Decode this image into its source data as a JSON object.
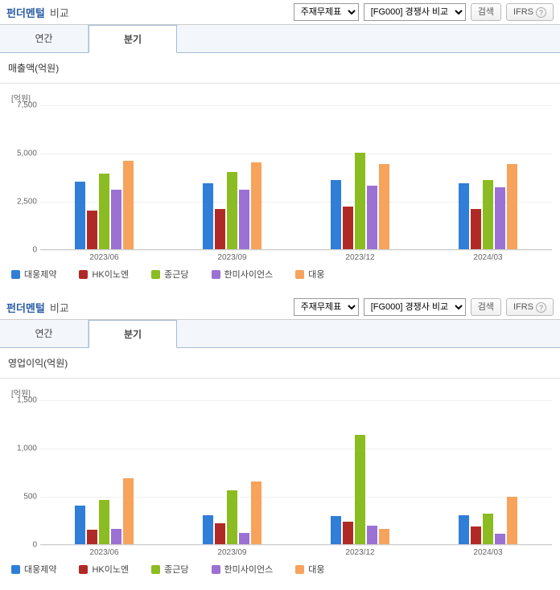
{
  "series": [
    {
      "label": "대웅제약",
      "color": "#2f7ed8"
    },
    {
      "label": "HK이노엔",
      "color": "#b02a25"
    },
    {
      "label": "종근당",
      "color": "#8bbc21"
    },
    {
      "label": "한미사이언스",
      "color": "#9b71d4"
    },
    {
      "label": "대웅",
      "color": "#f7a35c"
    }
  ],
  "panels": [
    {
      "title_main": "펀더멘털",
      "title_sub": "비교",
      "select1": "주재무제표",
      "select2": "[FG000] 경쟁사 비교",
      "btn_search": "검색",
      "btn_ifrs": "IFRS",
      "tabs": {
        "annual": "연간",
        "quarter": "분기",
        "active": "quarter"
      },
      "chart": {
        "title": "매출액(억원)",
        "yunit": "[억원]",
        "ymax": 7500,
        "yticks": [
          0,
          2500,
          5000,
          7500
        ],
        "categories": [
          "2023/06",
          "2023/09",
          "2023/12",
          "2024/03"
        ],
        "data": [
          [
            3500,
            2000,
            3900,
            3100,
            4600
          ],
          [
            3400,
            2100,
            4000,
            3100,
            4500
          ],
          [
            3600,
            2200,
            5000,
            3300,
            4400
          ],
          [
            3400,
            2100,
            3600,
            3200,
            4400
          ]
        ]
      }
    },
    {
      "title_main": "펀더멘털",
      "title_sub": "비교",
      "select1": "주재무제표",
      "select2": "[FG000] 경쟁사 비교",
      "btn_search": "검색",
      "btn_ifrs": "IFRS",
      "tabs": {
        "annual": "연간",
        "quarter": "분기",
        "active": "quarter"
      },
      "chart": {
        "title": "영업이익(억원)",
        "yunit": "[억원]",
        "ymax": 1500,
        "yticks": [
          0,
          500,
          1000,
          1500
        ],
        "categories": [
          "2023/06",
          "2023/09",
          "2023/12",
          "2024/03"
        ],
        "data": [
          [
            400,
            150,
            460,
            160,
            680
          ],
          [
            300,
            220,
            560,
            120,
            650
          ],
          [
            290,
            230,
            1130,
            190,
            160
          ],
          [
            300,
            180,
            320,
            110,
            490
          ]
        ]
      }
    }
  ]
}
